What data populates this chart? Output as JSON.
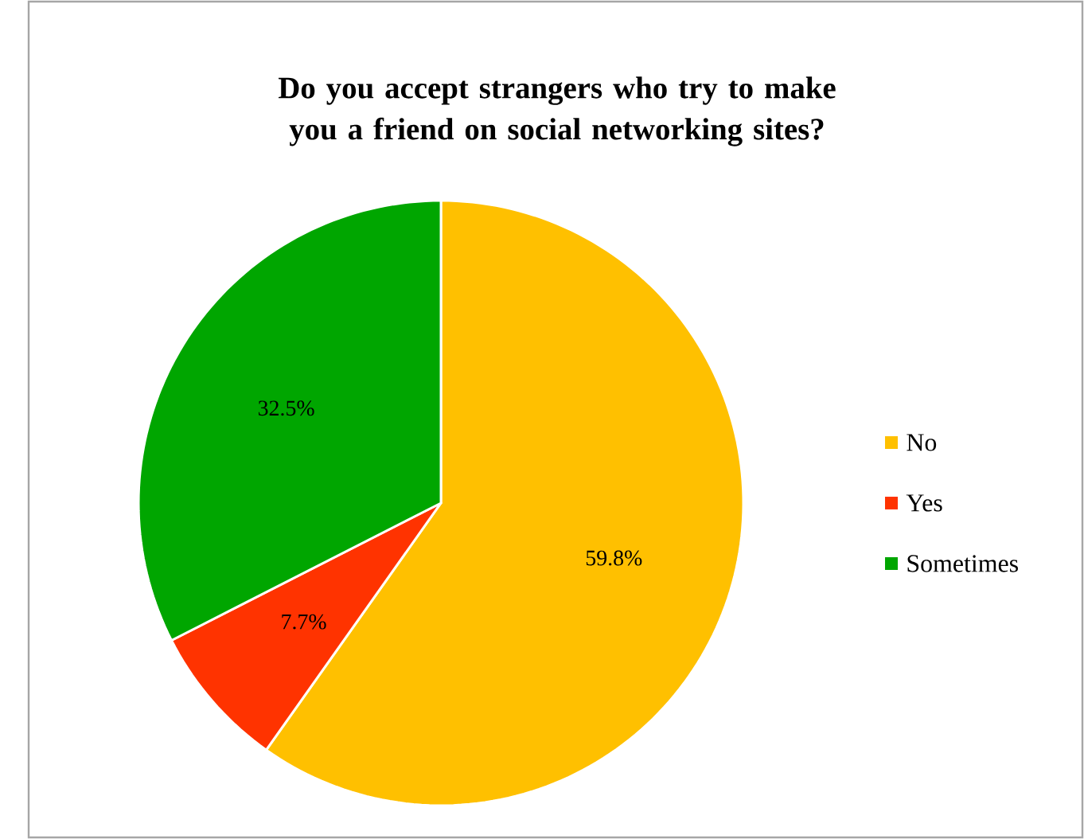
{
  "chart_data": {
    "type": "pie",
    "title": "Do you accept strangers who try to make you a friend on social networking sites?",
    "categories": [
      "No",
      "Yes",
      "Sometimes"
    ],
    "values": [
      59.8,
      7.7,
      32.5
    ],
    "value_labels": [
      "59.8%",
      "7.7%",
      "32.5%"
    ],
    "colors": [
      "#ffc000",
      "#ff3300",
      "#00a600"
    ],
    "legend": "right"
  }
}
